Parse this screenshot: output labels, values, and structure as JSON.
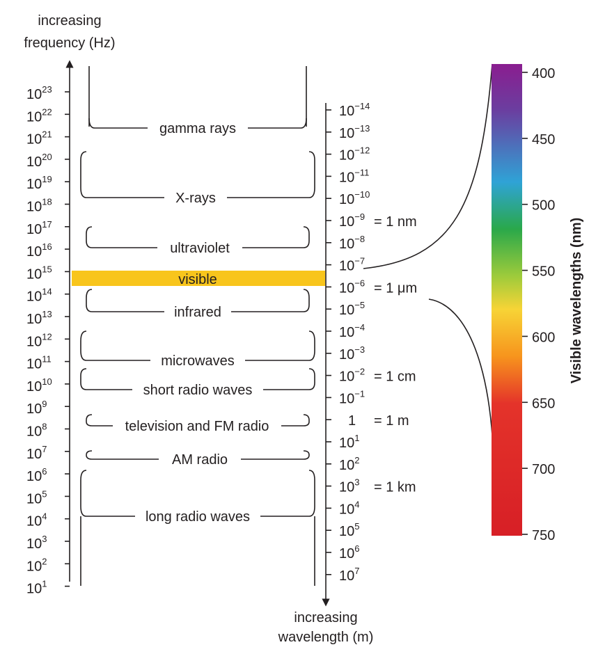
{
  "title_left": [
    "increasing",
    "frequency (Hz)"
  ],
  "title_bottom": [
    "increasing",
    "wavelength (m)"
  ],
  "frequency_exponents": [
    "23",
    "22",
    "21",
    "20",
    "19",
    "18",
    "17",
    "16",
    "15",
    "14",
    "13",
    "12",
    "11",
    "10",
    "9",
    "8",
    "7",
    "6",
    "5",
    "4",
    "3",
    "2",
    "1"
  ],
  "frequency_base": "10",
  "wavelength_ticks": [
    {
      "base": "10",
      "exp": "−14",
      "note": ""
    },
    {
      "base": "10",
      "exp": "−13",
      "note": ""
    },
    {
      "base": "10",
      "exp": "−12",
      "note": ""
    },
    {
      "base": "10",
      "exp": "−11",
      "note": ""
    },
    {
      "base": "10",
      "exp": "−10",
      "note": ""
    },
    {
      "base": "10",
      "exp": "−9",
      "note": "= 1 nm"
    },
    {
      "base": "10",
      "exp": "−8",
      "note": ""
    },
    {
      "base": "10",
      "exp": "−7",
      "note": ""
    },
    {
      "base": "10",
      "exp": "−6",
      "note": "= 1 μm"
    },
    {
      "base": "10",
      "exp": "−5",
      "note": ""
    },
    {
      "base": "10",
      "exp": "−4",
      "note": ""
    },
    {
      "base": "10",
      "exp": "−3",
      "note": ""
    },
    {
      "base": "10",
      "exp": "−2",
      "note": "= 1 cm"
    },
    {
      "base": "10",
      "exp": "−1",
      "note": ""
    },
    {
      "base": "1",
      "exp": "",
      "note": "= 1 m"
    },
    {
      "base": "10",
      "exp": "1",
      "note": ""
    },
    {
      "base": "10",
      "exp": "2",
      "note": ""
    },
    {
      "base": "10",
      "exp": "3",
      "note": "= 1 km"
    },
    {
      "base": "10",
      "exp": "4",
      "note": ""
    },
    {
      "base": "10",
      "exp": "5",
      "note": ""
    },
    {
      "base": "10",
      "exp": "6",
      "note": ""
    },
    {
      "base": "10",
      "exp": "7",
      "note": ""
    }
  ],
  "bands": [
    {
      "name": "gamma rays"
    },
    {
      "name": "X-rays"
    },
    {
      "name": "ultraviolet"
    },
    {
      "name": "visible"
    },
    {
      "name": "infrared"
    },
    {
      "name": "microwaves"
    },
    {
      "name": "short radio waves"
    },
    {
      "name": "television and FM radio"
    },
    {
      "name": "AM radio"
    },
    {
      "name": "long radio waves"
    }
  ],
  "visible_scale": {
    "title": "Visible wavelengths (nm)",
    "ticks": [
      "400",
      "450",
      "500",
      "550",
      "600",
      "650",
      "700",
      "750"
    ]
  },
  "colors": {
    "ink": "#231f20",
    "visible_band": "#f8c51c",
    "spectrum": [
      "#8a1d8f",
      "#5a4aa3",
      "#2fa3d6",
      "#2aa84a",
      "#9ecb3b",
      "#f7d436",
      "#f7941d",
      "#e4332a",
      "#d71f26",
      "#d71f26"
    ]
  }
}
